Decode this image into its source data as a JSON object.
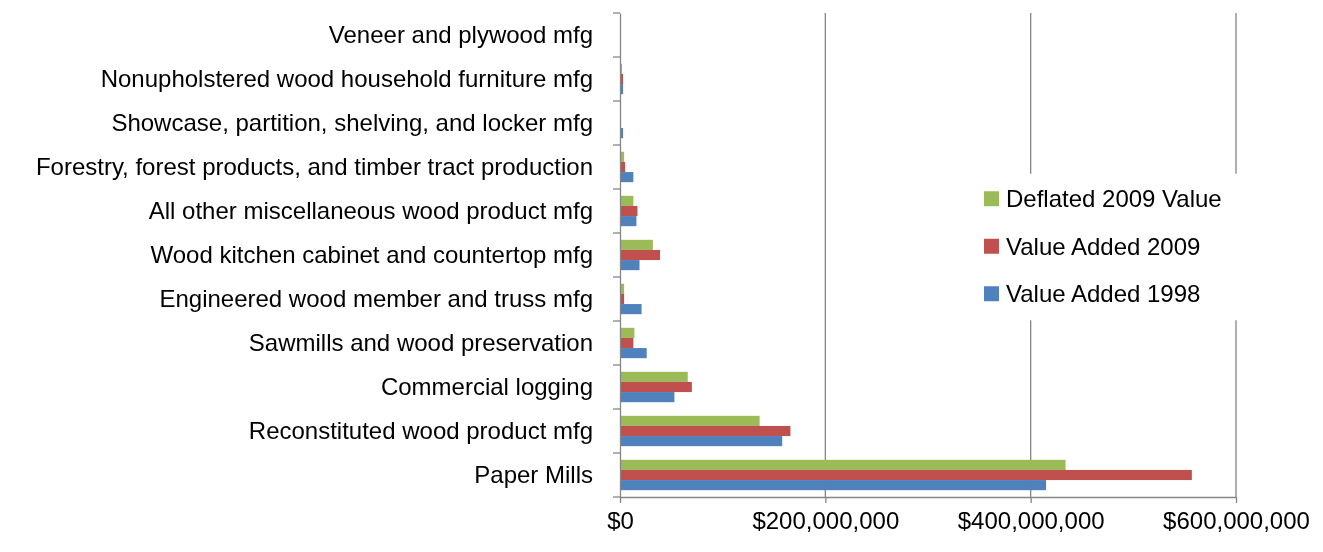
{
  "chart_data": {
    "type": "bar",
    "orientation": "horizontal",
    "categories": [
      "Veneer and plywood mfg",
      "Nonupholstered wood household furniture mfg",
      "Showcase, partition, shelving, and locker mfg",
      "Forestry, forest products, and timber tract production",
      "All other miscellaneous wood product mfg",
      "Wood kitchen cabinet and countertop mfg",
      "Engineered wood member and truss mfg",
      "Sawmills and wood preservation",
      "Commercial logging",
      "Reconstituted wood product mfg",
      "Paper Mills"
    ],
    "series": [
      {
        "name": "Deflated 2009 Value",
        "color": "#9bbb59",
        "values": [
          0,
          2000000,
          0,
          4000000,
          13000000,
          32000000,
          4000000,
          14000000,
          66000000,
          136000000,
          434000000
        ]
      },
      {
        "name": "Value Added 2009",
        "color": "#c0504d",
        "values": [
          0,
          3000000,
          1000000,
          5000000,
          17000000,
          39000000,
          4000000,
          13000000,
          70000000,
          166000000,
          557000000
        ]
      },
      {
        "name": "Value Added 1998",
        "color": "#4f81bd",
        "values": [
          0,
          3000000,
          3000000,
          13000000,
          16000000,
          19000000,
          21000000,
          26000000,
          53000000,
          158000000,
          415000000
        ]
      }
    ],
    "xlim": [
      0,
      600000000
    ],
    "xticks": [
      {
        "value": 0,
        "label": "$0"
      },
      {
        "value": 200000000,
        "label": "$200,000,000"
      },
      {
        "value": 400000000,
        "label": "$400,000,000"
      },
      {
        "value": 600000000,
        "label": "$600,000,000"
      }
    ],
    "grid": "x",
    "legend": "right"
  }
}
